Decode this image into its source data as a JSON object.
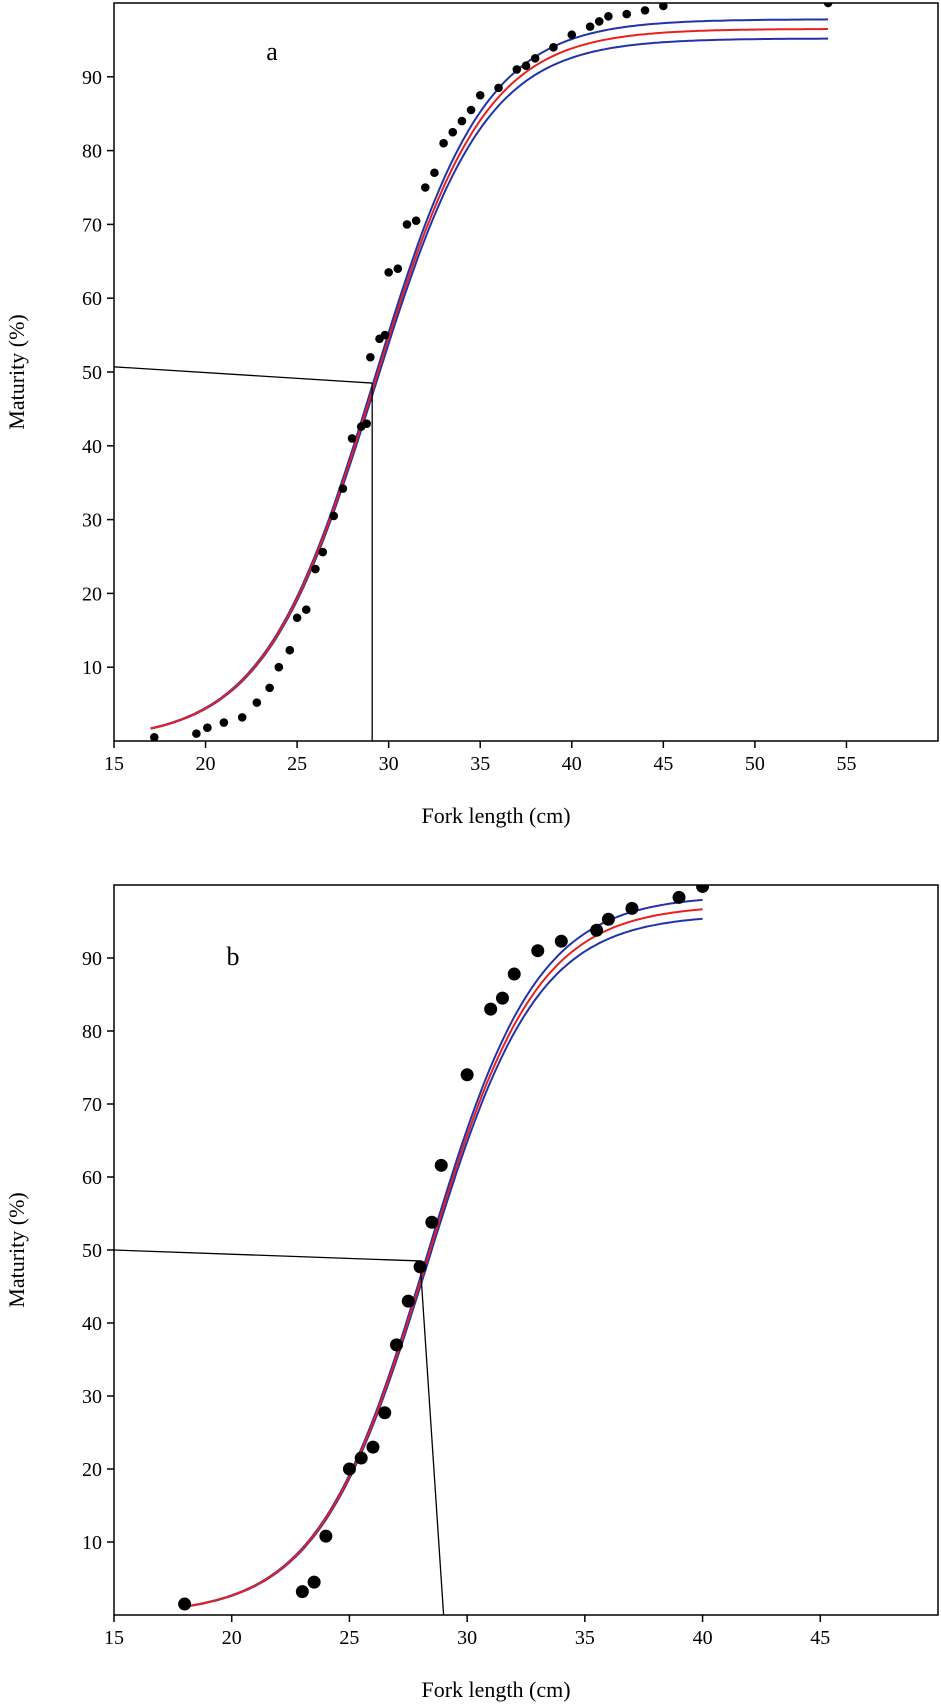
{
  "chart_data": [
    {
      "type": "scatter",
      "panel_label": "a",
      "xlabel": "Fork length (cm)",
      "ylabel": "Maturity (%)",
      "xlim": [
        15,
        60
      ],
      "ylim": [
        0,
        100
      ],
      "x_ticks": [
        15,
        20,
        25,
        30,
        35,
        40,
        45,
        50,
        55
      ],
      "y_ticks": [
        10,
        20,
        30,
        40,
        50,
        60,
        70,
        80,
        90
      ],
      "grid": false,
      "fit": {
        "L50": 29.2,
        "k": 0.33,
        "asymptote": 96.5,
        "ci_offset": 1.3,
        "x_start": 17,
        "x_end": 54
      },
      "l50_reference": {
        "y_left": 50.7,
        "x": 29.1,
        "y": 48.5
      },
      "series": [
        {
          "kind": "points",
          "x": [
            17.2,
            19.5,
            20.1,
            21.0,
            22.0,
            22.8,
            23.5,
            24.0,
            24.6,
            25.0,
            25.5,
            26.0,
            26.4,
            27.0,
            27.5,
            28.0,
            28.5,
            28.8,
            29.0,
            29.5,
            29.8,
            30.0,
            30.5,
            31.0,
            31.5,
            32.0,
            32.5,
            33.0,
            33.5,
            34.0,
            34.5,
            35.0,
            36.0,
            37.0,
            37.5,
            38.0,
            39.0,
            40.0,
            41.0,
            41.5,
            42.0,
            43.0,
            44.0,
            45.0,
            54.0
          ],
          "y": [
            0.5,
            1.0,
            1.8,
            2.5,
            3.2,
            5.2,
            7.2,
            10.0,
            12.3,
            16.7,
            17.8,
            23.3,
            25.6,
            30.5,
            34.2,
            41.0,
            42.6,
            43.0,
            52.0,
            54.5,
            55.0,
            63.5,
            64.0,
            70.0,
            70.5,
            75.0,
            77.0,
            81.0,
            82.5,
            84.0,
            85.5,
            87.5,
            88.5,
            91.0,
            91.5,
            92.5,
            94.0,
            95.7,
            96.8,
            97.5,
            98.2,
            98.5,
            99.0,
            99.6,
            100.0
          ]
        }
      ]
    },
    {
      "type": "scatter",
      "panel_label": "b",
      "xlabel": "Fork length (cm)",
      "ylabel": "Maturity (%)",
      "xlim": [
        15,
        50
      ],
      "ylim": [
        0,
        100
      ],
      "x_ticks": [
        15,
        20,
        25,
        30,
        35,
        40,
        45
      ],
      "y_ticks": [
        10,
        20,
        30,
        40,
        50,
        60,
        70,
        80,
        90
      ],
      "grid": false,
      "fit": {
        "L50": 28.3,
        "k": 0.43,
        "asymptote": 97.3,
        "ci_offset": 1.3,
        "x_start": 18,
        "x_end": 40
      },
      "l50_reference": {
        "y_left": 50.0,
        "x": 28.0,
        "y": 48.5,
        "x_bottom": 29.0
      },
      "series": [
        {
          "kind": "points",
          "x": [
            18.0,
            23.0,
            23.5,
            24.0,
            25.0,
            25.5,
            26.0,
            26.5,
            27.0,
            27.5,
            28.0,
            28.5,
            28.9,
            30.0,
            31.0,
            31.5,
            32.0,
            33.0,
            34.0,
            35.5,
            36.0,
            37.0,
            39.0,
            40.0
          ],
          "y": [
            1.5,
            3.2,
            4.5,
            10.8,
            20.0,
            21.5,
            23.0,
            27.7,
            37.0,
            43.0,
            47.7,
            53.8,
            61.6,
            74.0,
            83.0,
            84.5,
            87.8,
            91.0,
            92.3,
            93.8,
            95.3,
            96.8,
            98.3,
            99.8
          ]
        }
      ]
    }
  ]
}
